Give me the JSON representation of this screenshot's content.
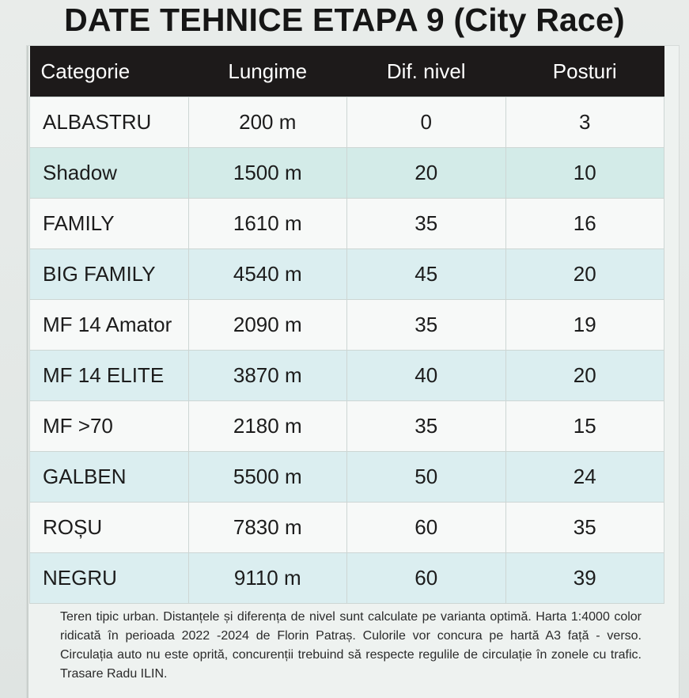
{
  "title": "DATE TEHNICE ETAPA 9 (City Race)",
  "table": {
    "headers": [
      "Categorie",
      "Lungime",
      "Dif. nivel",
      "Posturi"
    ],
    "rows": [
      [
        "ALBASTRU",
        "200 m",
        "0",
        "3"
      ],
      [
        "Shadow",
        "1500 m",
        "20",
        "10"
      ],
      [
        "FAMILY",
        "1610 m",
        "35",
        "16"
      ],
      [
        "BIG FAMILY",
        "4540 m",
        "45",
        "20"
      ],
      [
        "MF 14 Amator",
        "2090 m",
        "35",
        "19"
      ],
      [
        "MF 14 ELITE",
        "3870 m",
        "40",
        "20"
      ],
      [
        "MF >70",
        "2180 m",
        "35",
        "15"
      ],
      [
        "GALBEN",
        "5500 m",
        "50",
        "24"
      ],
      [
        "ROȘU",
        "7830 m",
        "60",
        "35"
      ],
      [
        "NEGRU",
        "9110 m",
        "60",
        "39"
      ]
    ]
  },
  "footnote": "Teren tipic urban. Distanțele și diferența de nivel sunt calculate pe varianta optimă. Harta 1:4000 color ridicată în perioada 2022 -2024 de Florin Patraș. Culorile vor concura pe hartă A3 față - verso. Circulația auto nu este oprită, concurenții trebuind să respecte regulile de circulație în zonele cu trafic. Trasare Radu ILIN.",
  "colors": {
    "header_bg": "#1d1a1a",
    "row_light": "#f7f9f8",
    "row_teal": "#d3ebe8"
  }
}
